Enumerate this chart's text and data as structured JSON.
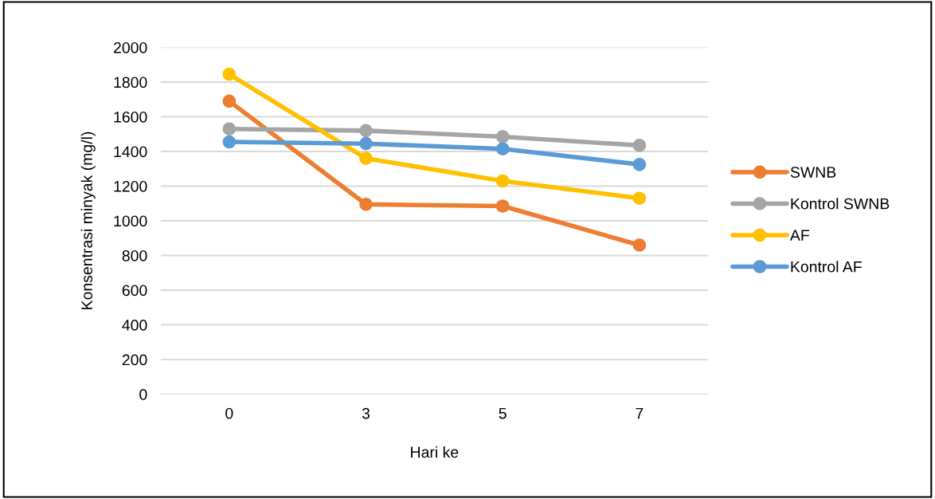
{
  "chart_data": {
    "type": "line",
    "xlabel": "Hari ke",
    "ylabel": "Konsentrasi minyak (mg/l)",
    "categories": [
      "0",
      "3",
      "5",
      "7"
    ],
    "series": [
      {
        "name": "SWNB",
        "color": "#ed7d31",
        "values": [
          1690,
          1095,
          1085,
          860
        ]
      },
      {
        "name": "Kontrol SWNB",
        "color": "#a5a5a5",
        "values": [
          1530,
          1520,
          1485,
          1435
        ]
      },
      {
        "name": "AF",
        "color": "#ffc000",
        "values": [
          1845,
          1360,
          1230,
          1130
        ]
      },
      {
        "name": "Kontrol AF",
        "color": "#5b9bd5",
        "values": [
          1455,
          1445,
          1415,
          1325
        ]
      }
    ],
    "ylim": [
      0,
      2000
    ],
    "yticks": [
      0,
      200,
      400,
      600,
      800,
      1000,
      1200,
      1400,
      1600,
      1800,
      2000
    ],
    "grid": "y",
    "legend": "right",
    "marker": "circle",
    "line_style": "solid"
  }
}
